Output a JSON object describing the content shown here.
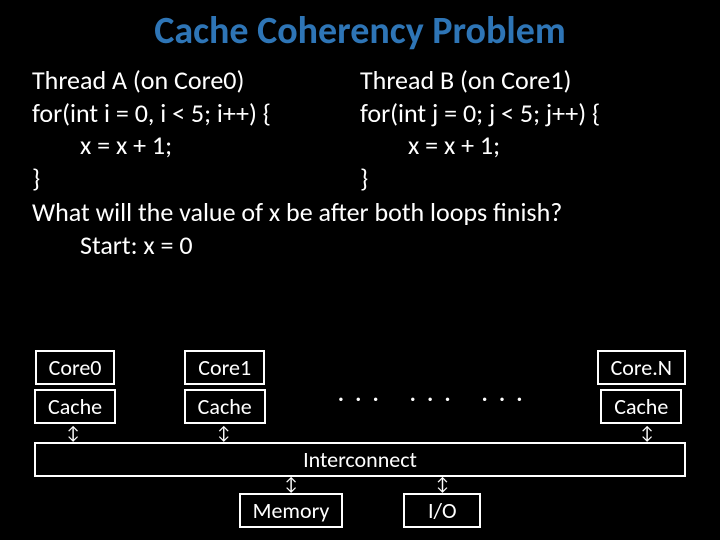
{
  "title": "Cache Coherency Problem",
  "threadA": {
    "header": "Thread A (on Core0)",
    "line1": "for(int i = 0, i < 5; i++) {",
    "line2": "x = x + 1;",
    "line3": "}"
  },
  "threadB": {
    "header": "Thread B (on Core1)",
    "line1": "for(int j = 0; j < 5; j++) {",
    "line2": "x = x + 1;",
    "line3": "}"
  },
  "question": "What will the value of x be after both loops finish?",
  "start": "Start: x = 0",
  "diagram": {
    "core0": "Core0",
    "core1": "Core1",
    "coreN": "Core.N",
    "cache": "Cache",
    "dots": ". . .",
    "interconnect": "Interconnect",
    "memory": "Memory",
    "io": "I/O",
    "arrow": "↕",
    "colors": {
      "background": "#000000",
      "text": "#ffffff",
      "title": "#2e75b6",
      "border": "#ffffff"
    }
  }
}
